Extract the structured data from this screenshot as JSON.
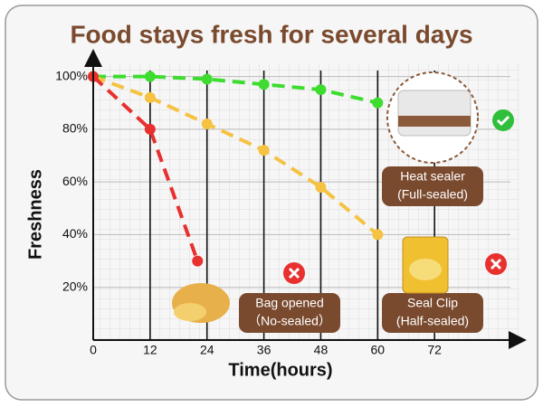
{
  "chart_data": {
    "type": "line",
    "title": "Food stays fresh for several days",
    "x_label": "Time(hours)",
    "y_label": "Freshness",
    "xlim": [
      0,
      88
    ],
    "ylim": [
      0,
      105
    ],
    "xticks": [
      0,
      12,
      24,
      36,
      48,
      60,
      72
    ],
    "yticks": [
      {
        "value": 20,
        "label": "20%"
      },
      {
        "value": 40,
        "label": "40%"
      },
      {
        "value": 60,
        "label": "60%"
      },
      {
        "value": 80,
        "label": "80%"
      },
      {
        "value": 100,
        "label": "100%"
      }
    ],
    "grid": true,
    "series": [
      {
        "name": "Heat sealer",
        "note": "(Full-sealed)",
        "color": "#3ddc2f",
        "x": [
          0,
          12,
          24,
          36,
          48,
          60
        ],
        "values": [
          100,
          100,
          99,
          97,
          95,
          90
        ]
      },
      {
        "name": "Seal Clip",
        "note": "(Half-sealed)",
        "color": "#f5c242",
        "x": [
          0,
          12,
          24,
          36,
          48,
          60
        ],
        "values": [
          100,
          92,
          82,
          72,
          58,
          40
        ]
      },
      {
        "name": "Bag opened",
        "note": "（No-sealed）",
        "color": "#e8302f",
        "x": [
          0,
          12,
          22
        ],
        "values": [
          100,
          80,
          30
        ]
      }
    ]
  }
}
